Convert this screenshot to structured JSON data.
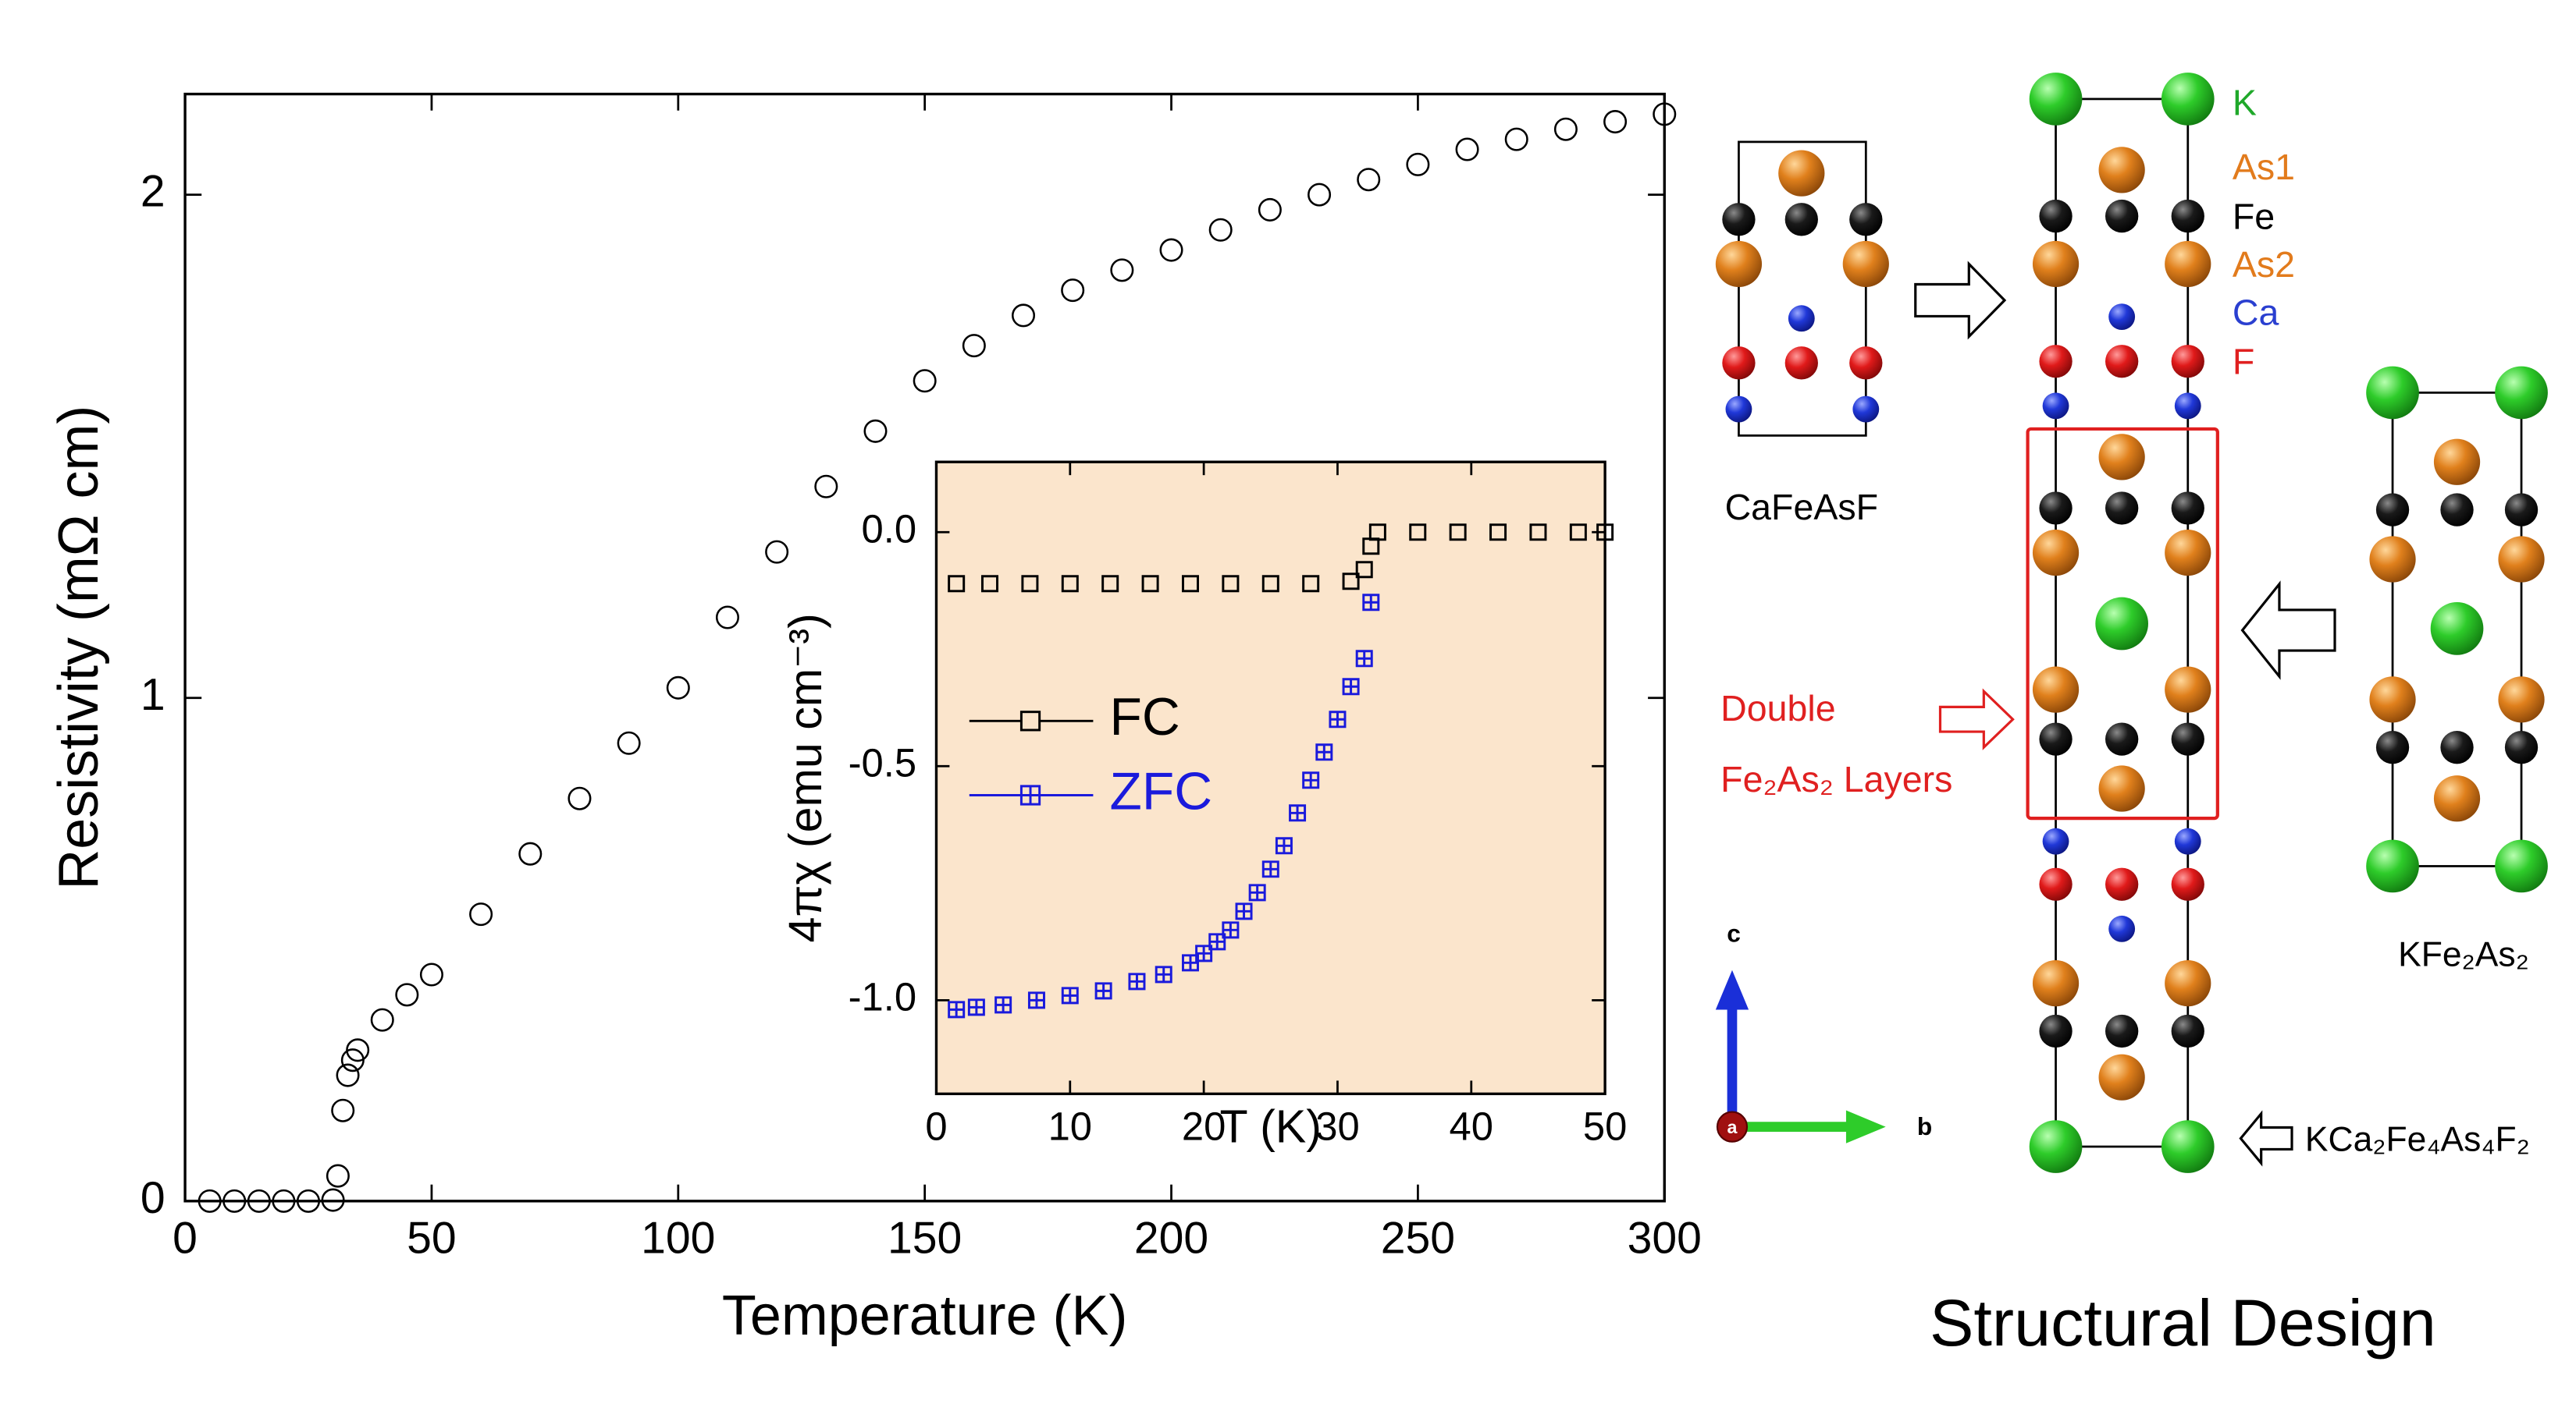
{
  "chart_data": [
    {
      "type": "scatter",
      "xlabel": "Temperature (K)",
      "ylabel": "Resistivity (mΩ cm)",
      "x": [
        5,
        10,
        15,
        20,
        25,
        30,
        31,
        32,
        33,
        34,
        35,
        40,
        45,
        50,
        60,
        70,
        80,
        90,
        100,
        110,
        120,
        130,
        140,
        150,
        160,
        170,
        180,
        190,
        200,
        210,
        220,
        230,
        240,
        250,
        260,
        270,
        280,
        290,
        300
      ],
      "values": [
        0,
        0,
        0,
        0,
        0,
        0.002,
        0.05,
        0.18,
        0.25,
        0.28,
        0.3,
        0.36,
        0.41,
        0.45,
        0.57,
        0.69,
        0.8,
        0.91,
        1.02,
        1.16,
        1.29,
        1.42,
        1.53,
        1.63,
        1.7,
        1.76,
        1.81,
        1.85,
        1.89,
        1.93,
        1.97,
        2.0,
        2.03,
        2.06,
        2.09,
        2.11,
        2.13,
        2.145,
        2.16
      ],
      "color": "#000000",
      "marker": "circle",
      "xlim": [
        0,
        300
      ],
      "xticks": [
        0,
        50,
        100,
        150,
        200,
        250,
        300
      ],
      "ylim": [
        0,
        2.2
      ],
      "yticks": [
        0,
        1,
        2
      ]
    },
    {
      "type": "scatter",
      "xlabel": "T (K)",
      "ylabel": "4πχ (emu cm⁻³)",
      "background": "#fbe5cc",
      "series": [
        {
          "name": "FC",
          "color": "#000000",
          "marker": "square",
          "x": [
            1.5,
            4,
            7,
            10,
            13,
            16,
            19,
            22,
            25,
            28,
            31,
            32,
            32.5,
            33,
            36,
            39,
            42,
            45,
            48,
            50
          ],
          "values": [
            -0.11,
            -0.11,
            -0.11,
            -0.11,
            -0.11,
            -0.11,
            -0.11,
            -0.11,
            -0.11,
            -0.11,
            -0.105,
            -0.08,
            -0.03,
            0,
            0,
            0,
            0,
            0,
            0,
            0
          ]
        },
        {
          "name": "ZFC",
          "color": "#1a1adc",
          "marker": "square-plus",
          "x": [
            1.5,
            3,
            5,
            7.5,
            10,
            12.5,
            15,
            17,
            19,
            20,
            21,
            22,
            23,
            24,
            25,
            26,
            27,
            28,
            29,
            30,
            31,
            32,
            32.5
          ],
          "values": [
            -1.02,
            -1.015,
            -1.01,
            -1.0,
            -0.99,
            -0.98,
            -0.96,
            -0.945,
            -0.92,
            -0.9,
            -0.875,
            -0.85,
            -0.81,
            -0.77,
            -0.72,
            -0.67,
            -0.6,
            -0.53,
            -0.47,
            -0.4,
            -0.33,
            -0.27,
            -0.15
          ]
        }
      ],
      "xlim": [
        0,
        50
      ],
      "xticks": [
        0,
        10,
        20,
        30,
        40,
        50
      ],
      "ylim": [
        -1.2,
        0.15
      ],
      "yticks": [
        {
          "value": -1.0,
          "label": "-1.0"
        },
        {
          "value": -0.5,
          "label": "-0.5"
        },
        {
          "value": 0.0,
          "label": "0.0"
        }
      ]
    }
  ],
  "diagram": {
    "legend": [
      {
        "label": "K",
        "color": "#1fa82a"
      },
      {
        "label": "As1",
        "color": "#e27b1c"
      },
      {
        "label": "Fe",
        "color": "#000000"
      },
      {
        "label": "As2",
        "color": "#e27b1c"
      },
      {
        "label": "Ca",
        "color": "#2a3fd0"
      },
      {
        "label": "F",
        "color": "#e02020"
      }
    ],
    "cells": {
      "left": "CaFeAsF",
      "right": "KFe₂As₂",
      "middle": "KCa₂Fe₄As₄F₂"
    },
    "highlight": [
      "Double",
      "Fe₂As₂ Layers"
    ],
    "axes": {
      "c": "c",
      "b": "b",
      "a": "a"
    },
    "title": "Structural Design"
  }
}
